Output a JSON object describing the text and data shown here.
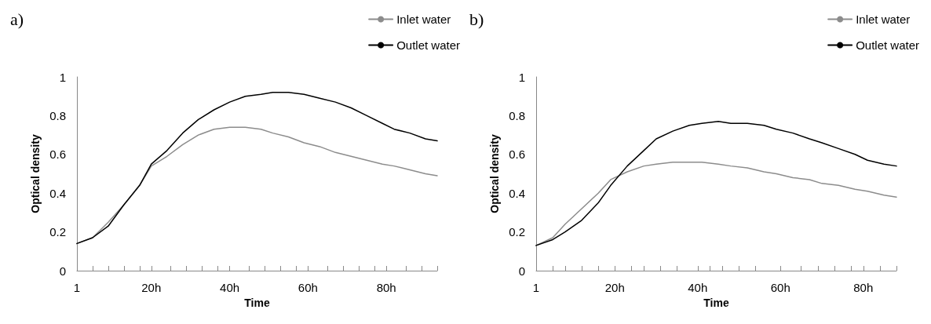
{
  "chart_data": [
    {
      "type": "line",
      "title": "a)",
      "xlabel": "Time",
      "ylabel": "Optical density",
      "xlim": [
        1,
        93
      ],
      "ylim": [
        0,
        1
      ],
      "yticks": [
        0,
        0.2,
        0.4,
        0.6,
        0.8,
        1
      ],
      "xticks": [
        {
          "value": 1,
          "label": "1"
        },
        {
          "value": 5,
          "label": null
        },
        {
          "value": 9,
          "label": null
        },
        {
          "value": 13,
          "label": null
        },
        {
          "value": 17,
          "label": null
        },
        {
          "value": 20,
          "label": "20h"
        },
        {
          "value": 25,
          "label": null
        },
        {
          "value": 29,
          "label": null
        },
        {
          "value": 33,
          "label": null
        },
        {
          "value": 37,
          "label": null
        },
        {
          "value": 40,
          "label": "40h"
        },
        {
          "value": 45,
          "label": null
        },
        {
          "value": 49,
          "label": null
        },
        {
          "value": 53,
          "label": null
        },
        {
          "value": 57,
          "label": null
        },
        {
          "value": 60,
          "label": "60h"
        },
        {
          "value": 65,
          "label": null
        },
        {
          "value": 69,
          "label": null
        },
        {
          "value": 73,
          "label": null
        },
        {
          "value": 77,
          "label": null
        },
        {
          "value": 80,
          "label": "80h"
        },
        {
          "value": 85,
          "label": null
        },
        {
          "value": 89,
          "label": null
        },
        {
          "value": 93,
          "label": null
        }
      ],
      "x": [
        1,
        5,
        9,
        13,
        17,
        20,
        24,
        28,
        32,
        36,
        40,
        44,
        48,
        51,
        55,
        59,
        63,
        67,
        71,
        75,
        79,
        82,
        86,
        90,
        93
      ],
      "series": [
        {
          "name": "Inlet water",
          "color": "#8c8c8c",
          "values": [
            0.14,
            0.17,
            0.25,
            0.34,
            0.44,
            0.54,
            0.59,
            0.65,
            0.7,
            0.73,
            0.74,
            0.74,
            0.73,
            0.71,
            0.69,
            0.66,
            0.64,
            0.61,
            0.59,
            0.57,
            0.55,
            0.54,
            0.52,
            0.5,
            0.49
          ]
        },
        {
          "name": "Outlet water",
          "color": "#000000",
          "values": [
            0.14,
            0.17,
            0.23,
            0.34,
            0.44,
            0.55,
            0.62,
            0.71,
            0.78,
            0.83,
            0.87,
            0.9,
            0.91,
            0.92,
            0.92,
            0.91,
            0.89,
            0.87,
            0.84,
            0.8,
            0.76,
            0.73,
            0.71,
            0.68,
            0.67
          ]
        }
      ],
      "legend": "top right",
      "marker": "none",
      "line_style": "solid",
      "grid": false
    },
    {
      "type": "line",
      "title": "b)",
      "xlabel": "Time",
      "ylabel": "Optical density",
      "xlim": [
        1,
        88
      ],
      "ylim": [
        0,
        1
      ],
      "yticks": [
        0,
        0.2,
        0.4,
        0.6,
        0.8,
        1
      ],
      "xticks": [
        {
          "value": 1,
          "label": "1"
        },
        {
          "value": 5,
          "label": null
        },
        {
          "value": 8,
          "label": null
        },
        {
          "value": 12,
          "label": null
        },
        {
          "value": 16,
          "label": null
        },
        {
          "value": 20,
          "label": "20h"
        },
        {
          "value": 24,
          "label": null
        },
        {
          "value": 27,
          "label": null
        },
        {
          "value": 31,
          "label": null
        },
        {
          "value": 35,
          "label": null
        },
        {
          "value": 40,
          "label": "40h"
        },
        {
          "value": 43,
          "label": null
        },
        {
          "value": 46,
          "label": null
        },
        {
          "value": 50,
          "label": null
        },
        {
          "value": 54,
          "label": null
        },
        {
          "value": 60,
          "label": "60h"
        },
        {
          "value": 65,
          "label": null
        },
        {
          "value": 69,
          "label": null
        },
        {
          "value": 73,
          "label": null
        },
        {
          "value": 77,
          "label": null
        },
        {
          "value": 80,
          "label": "80h"
        },
        {
          "value": 84,
          "label": null
        },
        {
          "value": 88,
          "label": null
        }
      ],
      "x": [
        1,
        5,
        8,
        12,
        16,
        19,
        23,
        27,
        30,
        34,
        38,
        41,
        45,
        48,
        52,
        56,
        59,
        63,
        67,
        70,
        74,
        78,
        81,
        85,
        88
      ],
      "series": [
        {
          "name": "Inlet water",
          "color": "#8c8c8c",
          "values": [
            0.13,
            0.17,
            0.24,
            0.32,
            0.4,
            0.47,
            0.51,
            0.54,
            0.55,
            0.56,
            0.56,
            0.56,
            0.55,
            0.54,
            0.53,
            0.51,
            0.5,
            0.48,
            0.47,
            0.45,
            0.44,
            0.42,
            0.41,
            0.39,
            0.38
          ]
        },
        {
          "name": "Outlet water",
          "color": "#000000",
          "values": [
            0.13,
            0.16,
            0.2,
            0.26,
            0.35,
            0.44,
            0.54,
            0.62,
            0.68,
            0.72,
            0.75,
            0.76,
            0.77,
            0.76,
            0.76,
            0.75,
            0.73,
            0.71,
            0.68,
            0.66,
            0.63,
            0.6,
            0.57,
            0.55,
            0.54
          ]
        }
      ],
      "legend": "top right",
      "marker": "none",
      "line_style": "solid",
      "grid": false
    }
  ]
}
